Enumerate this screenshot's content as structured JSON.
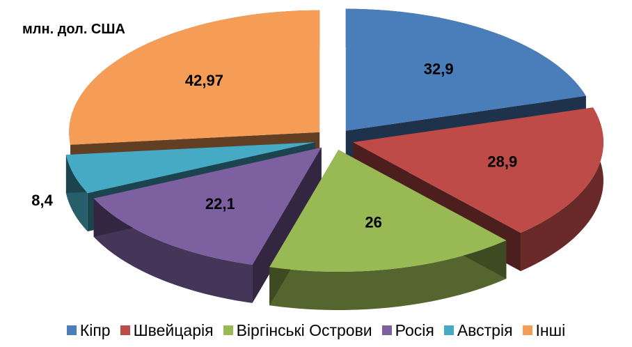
{
  "chart_data": {
    "type": "pie3d",
    "title": "млн. дол. США",
    "categories": [
      "Кіпр",
      "Швейцарія",
      "Віргінські Острови",
      "Росія",
      "Австрія",
      "Інші"
    ],
    "values": [
      32.9,
      28.9,
      26,
      22.1,
      8.4,
      42.97
    ],
    "value_labels": [
      "32,9",
      "28,9",
      "26",
      "22,1",
      "8,4",
      "42,97"
    ],
    "colors": [
      "#4a7ebb",
      "#be4b48",
      "#98b954",
      "#7d60a0",
      "#46aac5",
      "#f59d56"
    ],
    "legend": "bottom"
  }
}
